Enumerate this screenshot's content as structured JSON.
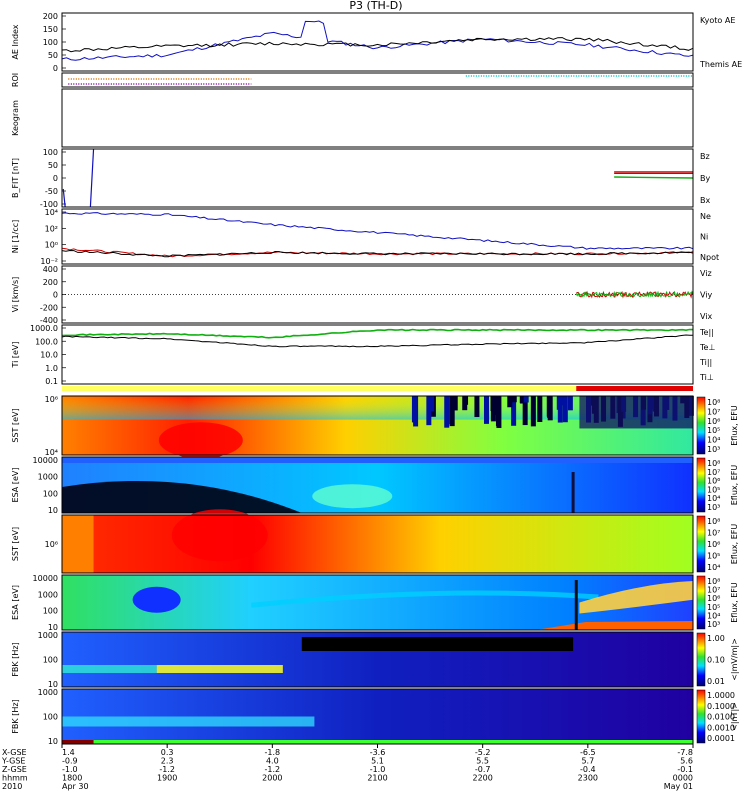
{
  "title": "P3 (TH-D)",
  "colors": {
    "blue": "#1010c0",
    "red": "#d00000",
    "green": "#10b010",
    "black": "#000000",
    "orange": "#d07000",
    "cyan": "#00c0c0"
  },
  "panels": [
    {
      "id": "ae",
      "ylabel": "AE Index",
      "unit": "",
      "ticks": [
        "200",
        "150",
        "100",
        "50",
        "0"
      ],
      "legend": [
        {
          "text": "Kyoto AE",
          "color": "#1010c0"
        },
        {
          "text": "Themis AE",
          "color": "#000000"
        }
      ]
    },
    {
      "id": "roi",
      "ylabel": "ROI",
      "unit": "",
      "ticks": [],
      "legend": []
    },
    {
      "id": "keogram",
      "ylabel": "Keogram",
      "unit": "",
      "ticks": [],
      "legend": []
    },
    {
      "id": "bfit",
      "ylabel": "B_FIT",
      "unit": "[nT]",
      "ticks": [
        "100",
        "50",
        "0",
        "-50",
        "-100"
      ],
      "legend": [
        {
          "text": "Bz",
          "color": "#d00000"
        },
        {
          "text": "By",
          "color": "#10b010"
        },
        {
          "text": "Bx",
          "color": "#1010c0"
        }
      ]
    },
    {
      "id": "ni",
      "ylabel": "Ni",
      "unit": "[1/cc]",
      "ticks": [
        "10⁴",
        "10²",
        "10⁰",
        "10⁻²"
      ],
      "legend": [
        {
          "text": "Ne",
          "color": "#d00000"
        },
        {
          "text": "Ni",
          "color": "#000000"
        },
        {
          "text": "Npot",
          "color": "#1010c0"
        }
      ]
    },
    {
      "id": "vi",
      "ylabel": "Vi",
      "unit": "[km/s]",
      "ticks": [
        "400",
        "200",
        "0",
        "-200",
        "-400"
      ],
      "legend": [
        {
          "text": "Viz",
          "color": "#d00000"
        },
        {
          "text": "Viy",
          "color": "#10b010"
        },
        {
          "text": "Vix",
          "color": "#1010c0"
        }
      ]
    },
    {
      "id": "ti",
      "ylabel": "Ti",
      "unit": "[eV]",
      "ticks": [
        "1000.0",
        "100.0",
        "10.0",
        "1.0",
        "0.1"
      ],
      "legend": [
        {
          "text": "Te||",
          "color": "#000000"
        },
        {
          "text": "Te⊥",
          "color": "#d00000"
        },
        {
          "text": "Ti||",
          "color": "#10b010"
        },
        {
          "text": "Ti⊥",
          "color": "#1010c0"
        }
      ]
    },
    {
      "id": "sste",
      "ylabel": "SST",
      "unit": "[eV]",
      "ticks": [
        "10⁶",
        "10⁴"
      ],
      "cbar": "Eflux, EFU",
      "cbticks": [
        "10⁸",
        "10⁷",
        "10⁶",
        "10⁵",
        "10⁴",
        "10³"
      ]
    },
    {
      "id": "esae",
      "ylabel": "ESA",
      "unit": "[eV]",
      "ticks": [
        "10000",
        "1000",
        "100",
        "10"
      ],
      "cbar": "Eflux, EFU",
      "cbticks": [
        "10⁸",
        "10⁷",
        "10⁶",
        "10⁵",
        "10⁴",
        "10³"
      ]
    },
    {
      "id": "ssti",
      "ylabel": "SST",
      "unit": "[eV]",
      "ticks": [
        "10⁶"
      ],
      "cbar": "Eflux, EFU",
      "cbticks": [
        "10⁸",
        "10⁷",
        "10⁶",
        "10⁵",
        "10⁴"
      ]
    },
    {
      "id": "esai",
      "ylabel": "ESA",
      "unit": "[eV]",
      "ticks": [
        "10000",
        "1000",
        "100",
        "10"
      ],
      "cbar": "Eflux, EFU",
      "cbticks": [
        "10⁸",
        "10⁷",
        "10⁶",
        "10⁵",
        "10⁴",
        "10³"
      ]
    },
    {
      "id": "fbke",
      "ylabel": "FBK",
      "unit": "[Hz]",
      "ticks": [
        "1000",
        "100",
        "10"
      ],
      "cbar": "<|mV/m|>",
      "cbticks": [
        "1.00",
        "0.10",
        "0.01"
      ]
    },
    {
      "id": "fbkb",
      "ylabel": "FBK",
      "unit": "[Hz]",
      "ticks": [
        "1000",
        "100",
        "10"
      ],
      "cbar": "<|nT|>",
      "cbticks": [
        "1.0000",
        "0.1000",
        "0.0100",
        "0.0010",
        "0.0001"
      ]
    }
  ],
  "xaxis": {
    "rowlabels": [
      "X-GSE",
      "Y-GSE",
      "Z-GSE",
      "hhmm",
      "2010"
    ],
    "columns": [
      {
        "vals": [
          "1.4",
          "-0.9",
          "-1.0",
          "1800",
          "Apr 30"
        ]
      },
      {
        "vals": [
          "0.3",
          "2.3",
          "-1.2",
          "1900",
          ""
        ]
      },
      {
        "vals": [
          "-1.8",
          "4.0",
          "-1.2",
          "2000",
          ""
        ]
      },
      {
        "vals": [
          "-3.6",
          "5.1",
          "-1.0",
          "2100",
          ""
        ]
      },
      {
        "vals": [
          "-5.2",
          "5.5",
          "-0.7",
          "2200",
          ""
        ]
      },
      {
        "vals": [
          "-6.5",
          "5.7",
          "-0.4",
          "2300",
          ""
        ]
      },
      {
        "vals": [
          "-7.8",
          "5.6",
          "-0.1",
          "0000",
          "May 01"
        ]
      }
    ]
  },
  "chart_data": [
    {
      "type": "line",
      "name": "ae",
      "title": "",
      "xlabel": "hhmm",
      "ylabel": "AE Index",
      "x": [
        "1800",
        "1900",
        "2000",
        "2100",
        "2200",
        "2300",
        "0000"
      ],
      "ylim": [
        0,
        200
      ],
      "series": [
        {
          "name": "Kyoto AE",
          "values": [
            40,
            55,
            130,
            80,
            110,
            90,
            50
          ]
        },
        {
          "name": "Themis AE",
          "values": [
            70,
            85,
            95,
            90,
            110,
            110,
            75
          ]
        }
      ]
    },
    {
      "type": "line",
      "name": "ni",
      "ylabel": "Ni",
      "ylim": [
        0.01,
        100000
      ],
      "series": [
        {
          "name": "Npot",
          "values": [
            30000,
            20000,
            1000,
            100,
            10,
            1,
            1
          ]
        },
        {
          "name": "Ne",
          "values": [
            1,
            0.1,
            0.3,
            0.2,
            0.2,
            0.2,
            0.3
          ]
        },
        {
          "name": "Ni",
          "values": [
            0.5,
            0.1,
            0.3,
            0.2,
            0.2,
            0.2,
            0.3
          ]
        }
      ]
    },
    {
      "type": "line",
      "name": "ti",
      "ylabel": "Ti",
      "ylim": [
        0.1,
        5000
      ],
      "series": [
        {
          "name": "Ti||",
          "values": [
            800,
            1000,
            500,
            2000,
            2000,
            2000,
            2000
          ]
        },
        {
          "name": "Te||",
          "values": [
            600,
            400,
            100,
            100,
            150,
            200,
            800
          ]
        }
      ]
    },
    {
      "type": "heatmap",
      "name": "sst-electron"
    },
    {
      "type": "heatmap",
      "name": "esa-electron"
    },
    {
      "type": "heatmap",
      "name": "sst-ion"
    },
    {
      "type": "heatmap",
      "name": "esa-ion"
    },
    {
      "type": "heatmap",
      "name": "fbk-e"
    },
    {
      "type": "heatmap",
      "name": "fbk-b"
    }
  ]
}
